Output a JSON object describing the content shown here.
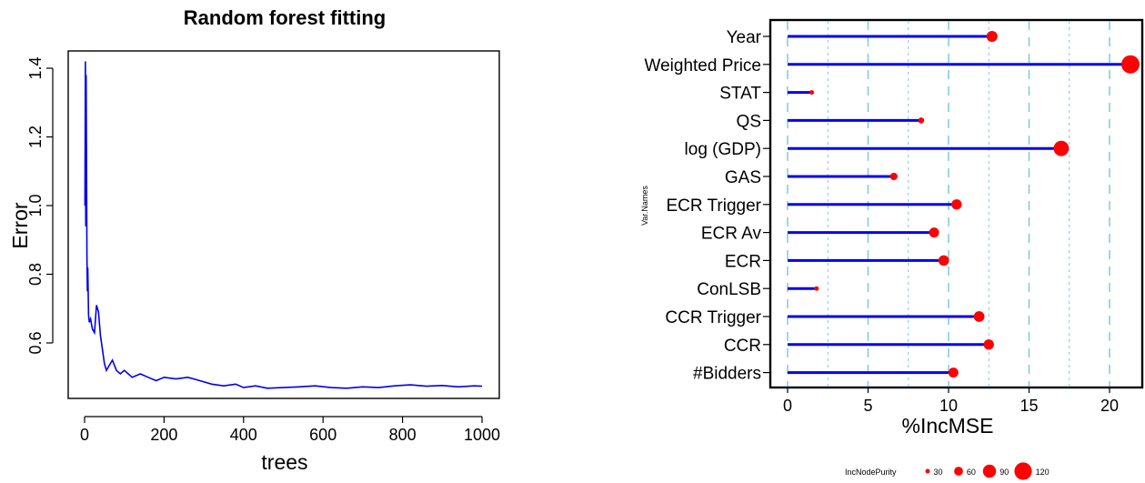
{
  "chart_data": [
    {
      "type": "line",
      "title": "Random forest fitting",
      "xlabel": "trees",
      "ylabel": "Error",
      "xlim": [
        0,
        1000
      ],
      "ylim": [
        0.46,
        1.43
      ],
      "xticks": [
        "0",
        "200",
        "400",
        "600",
        "800",
        "1000"
      ],
      "yticks": [
        "0.6",
        "0.8",
        "1.0",
        "1.2",
        "1.4"
      ],
      "color": "#0000ee",
      "series": [
        {
          "x": [
            1,
            2,
            3,
            4,
            5,
            6,
            7,
            8,
            10,
            12,
            15,
            18,
            20,
            25,
            30,
            35,
            40,
            45,
            50,
            55,
            60,
            70,
            80,
            90,
            100,
            120,
            140,
            160,
            180,
            200,
            230,
            260,
            290,
            320,
            350,
            380,
            400,
            430,
            460,
            500,
            540,
            580,
            620,
            660,
            700,
            740,
            780,
            820,
            860,
            900,
            940,
            980,
            1000
          ],
          "y": [
            1.0,
            1.42,
            0.94,
            1.38,
            1.1,
            0.85,
            0.75,
            0.82,
            0.68,
            0.66,
            0.67,
            0.65,
            0.64,
            0.63,
            0.71,
            0.69,
            0.62,
            0.58,
            0.54,
            0.52,
            0.53,
            0.55,
            0.52,
            0.51,
            0.52,
            0.5,
            0.51,
            0.5,
            0.49,
            0.5,
            0.495,
            0.5,
            0.49,
            0.48,
            0.475,
            0.48,
            0.47,
            0.475,
            0.468,
            0.47,
            0.472,
            0.475,
            0.47,
            0.468,
            0.472,
            0.47,
            0.475,
            0.478,
            0.474,
            0.476,
            0.472,
            0.475,
            0.474
          ]
        }
      ]
    },
    {
      "type": "scatter",
      "subtype": "lollipop",
      "xlabel": "%IncMSE",
      "ylabel": "Var.Names",
      "xlim": [
        -1,
        22
      ],
      "xticks": [
        "0",
        "5",
        "10",
        "15",
        "20"
      ],
      "categories": [
        "Year",
        "Weighted Price",
        "STAT",
        "QS",
        "log (GDP)",
        "GAS",
        "ECR Trigger",
        "ECR Av",
        "ECR",
        "ConLSB",
        "CCR Trigger",
        "CCR",
        "#Bidders"
      ],
      "values": [
        12.7,
        21.3,
        1.5,
        8.3,
        17.0,
        6.6,
        10.5,
        9.1,
        9.7,
        1.8,
        11.9,
        12.5,
        10.3
      ],
      "size_values": [
        75,
        125,
        30,
        40,
        105,
        50,
        70,
        68,
        72,
        30,
        73,
        70,
        68
      ],
      "size_label": "IncNodePurity",
      "size_legend": [
        "30",
        "60",
        "90",
        "120"
      ],
      "line_color": "#0000ee",
      "point_color": "#ff0000",
      "grid": "vertical dashed"
    }
  ]
}
